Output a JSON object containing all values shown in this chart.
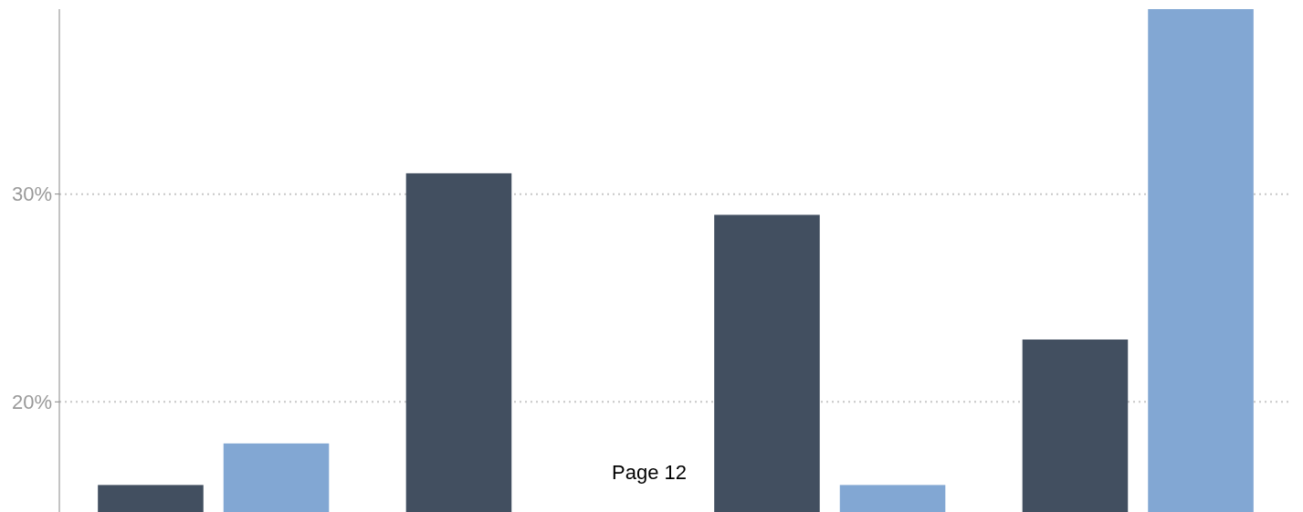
{
  "chart_data": {
    "type": "bar",
    "categories": [
      null,
      null,
      null,
      null
    ],
    "series": [
      {
        "color": "#424f60",
        "values": [
          16,
          31,
          29,
          23
        ]
      },
      {
        "color": "#82a7d3",
        "values": [
          18,
          null,
          16,
          38.9
        ]
      }
    ],
    "ylim": [
      14.7,
      38.9
    ],
    "yticks": [
      {
        "value": 20,
        "label": "20%"
      },
      {
        "value": 30,
        "label": "30%"
      }
    ],
    "grid": "y",
    "annotations": [
      "Page 12"
    ]
  }
}
